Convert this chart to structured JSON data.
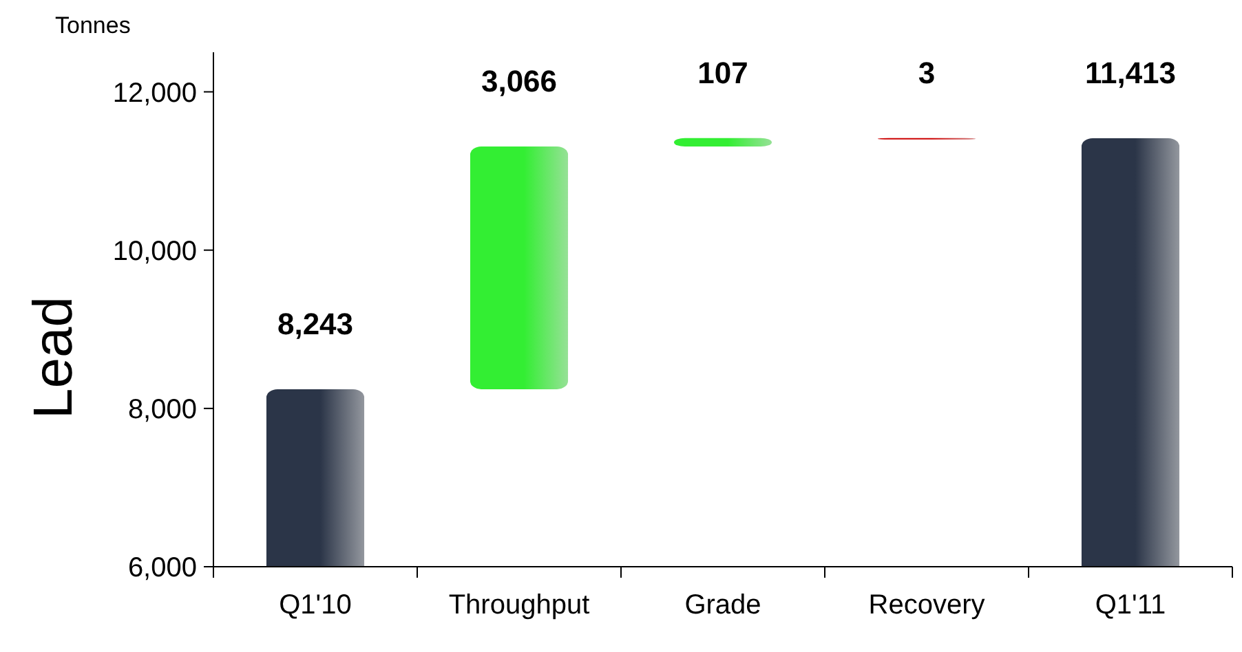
{
  "chart_data": {
    "type": "bar",
    "ylabel": "Lead",
    "annotations": [
      "Tonnes"
    ],
    "categories": [
      "Q1'10",
      "Throughput",
      "Grade",
      "Recovery",
      "Q1'11"
    ],
    "values": [
      8243,
      3066,
      107,
      -3,
      11413
    ],
    "base": [
      null,
      8243,
      11309,
      11416,
      null
    ],
    "value_labels": [
      "8,243",
      "3,066",
      "107",
      "3",
      "11,413"
    ],
    "colors": [
      "#2b3548",
      "#33ee33",
      "#33ee33",
      "#cc0000",
      "#2b3548"
    ],
    "ylim": [
      6000,
      12500
    ],
    "yticks": [
      {
        "value": 6000,
        "label": "6,000"
      },
      {
        "value": 8000,
        "label": "8,000"
      },
      {
        "value": 10000,
        "label": "10,000"
      },
      {
        "value": 12000,
        "label": "12,000"
      }
    ],
    "grid": false
  }
}
